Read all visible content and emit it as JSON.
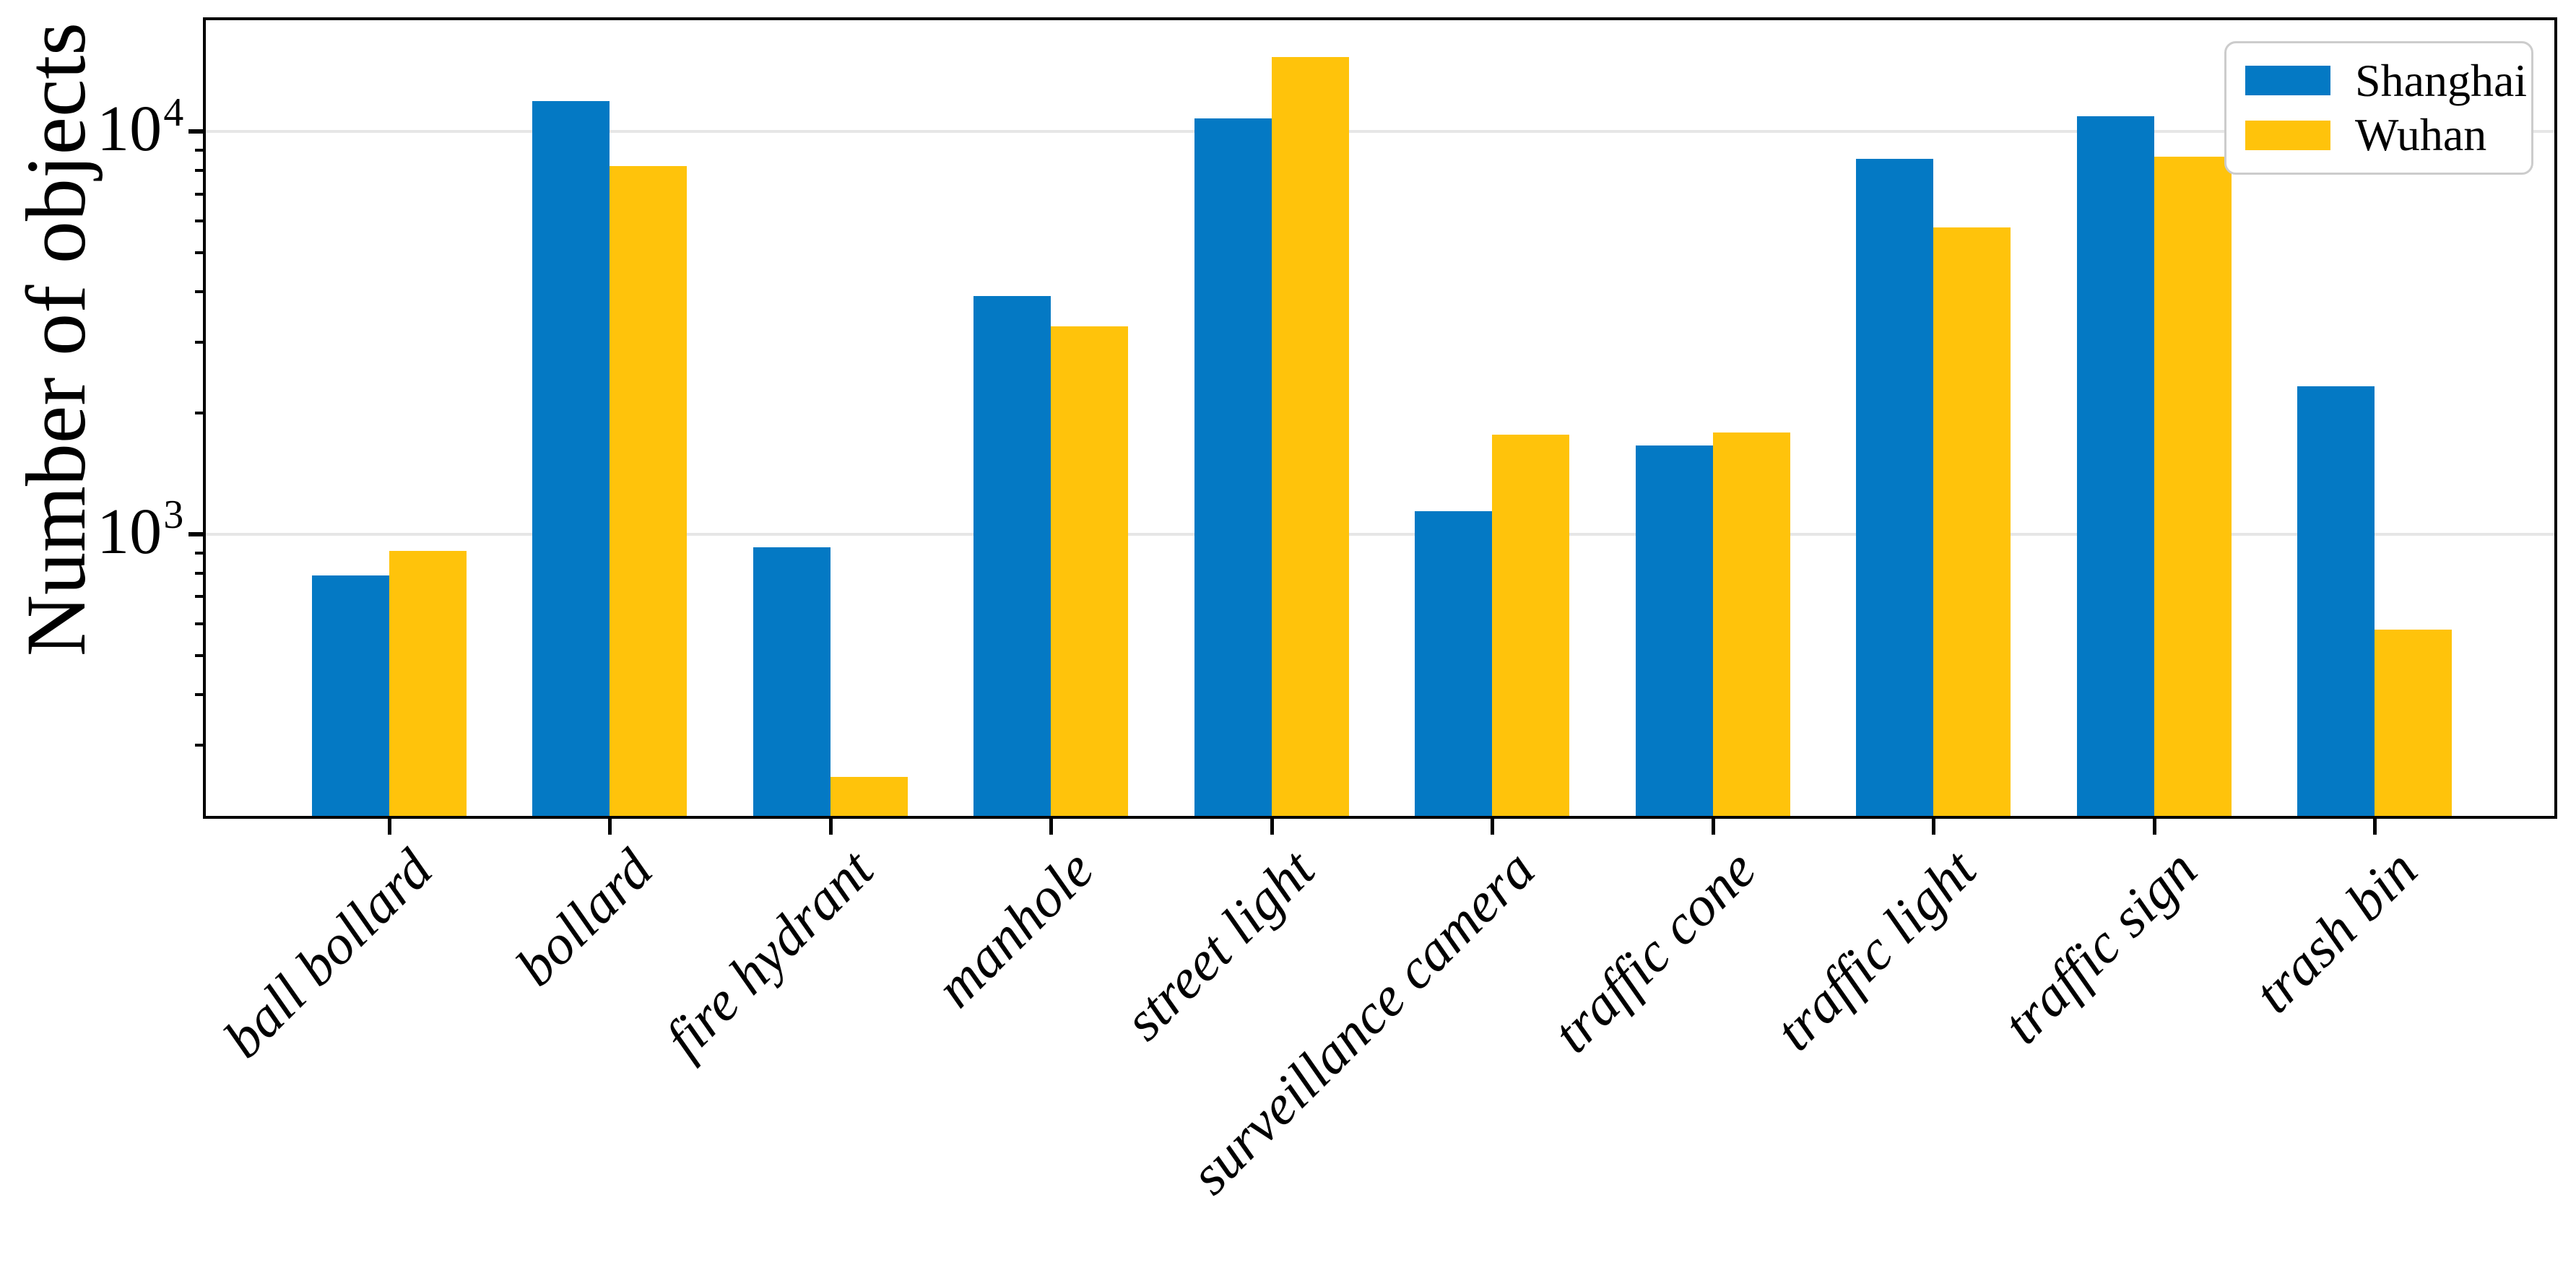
{
  "chart_data": {
    "type": "bar",
    "title": "",
    "xlabel": "",
    "ylabel": "Number of objects",
    "yscale": "log",
    "ylim": [
      200,
      18900
    ],
    "grid": "horizontal-major-only",
    "legend_position": "upper right",
    "background_color": "#ffffff",
    "axis_color": "#000000",
    "gridline_color": "#e6e6e6",
    "categories": [
      "ball bollard",
      "bollard",
      "fire hydrant",
      "manhole",
      "street light",
      "surveillance camera",
      "traffic cone",
      "traffic light",
      "traffic sign",
      "trash bin"
    ],
    "series": [
      {
        "name": "Shanghai",
        "color": "#0479C4",
        "values": [
          790,
          11900,
          930,
          3900,
          10800,
          1140,
          1660,
          8550,
          10900,
          2330
        ]
      },
      {
        "name": "Wuhan",
        "color": "#FFC30B",
        "values": [
          910,
          8200,
          250,
          3280,
          15300,
          1770,
          1790,
          5770,
          8650,
          580
        ]
      }
    ],
    "y_major_ticks": [
      {
        "value": 1000,
        "label": "10^3"
      },
      {
        "value": 10000,
        "label": "10^4"
      }
    ],
    "y_minor_ticks": [
      300,
      400,
      500,
      600,
      700,
      800,
      900,
      2000,
      3000,
      4000,
      5000,
      6000,
      7000,
      8000,
      9000
    ]
  }
}
